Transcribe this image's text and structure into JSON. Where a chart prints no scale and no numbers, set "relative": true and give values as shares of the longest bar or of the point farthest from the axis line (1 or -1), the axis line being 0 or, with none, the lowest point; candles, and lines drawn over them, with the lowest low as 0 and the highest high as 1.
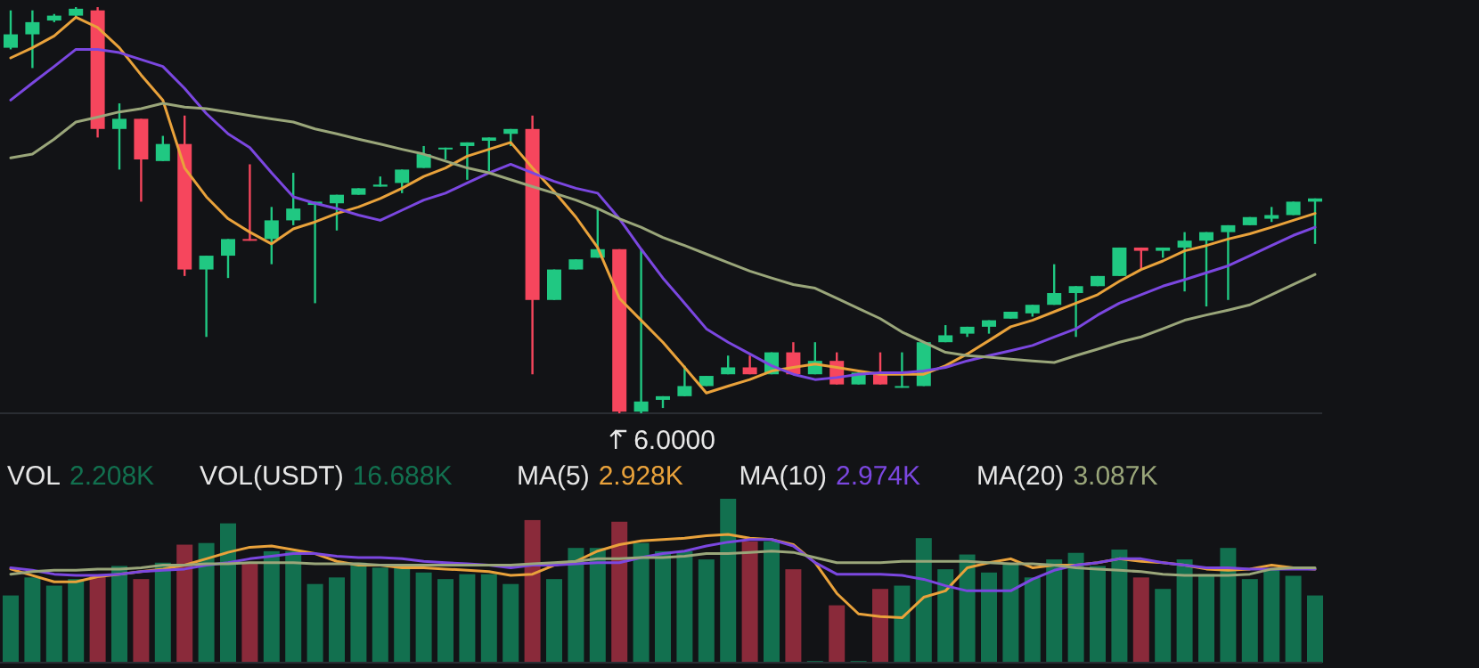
{
  "chart_data": [
    {
      "type": "candlestick",
      "relative": true,
      "categories": [
        null,
        null,
        null,
        null,
        null,
        null,
        null,
        null,
        null,
        null,
        null,
        null,
        null,
        null,
        null,
        null,
        null,
        null,
        null,
        null,
        null,
        null,
        null,
        null,
        null,
        null,
        null,
        null,
        null,
        null,
        null,
        null,
        null,
        null,
        null,
        null,
        null,
        null,
        null,
        null,
        null,
        null,
        null,
        null,
        null,
        null,
        null,
        null,
        null,
        null,
        null,
        null,
        null,
        null,
        null,
        null,
        null,
        null,
        null,
        null,
        null
      ],
      "ohlc": [
        [
          0.9,
          0.992,
          0.896,
          0.933
        ],
        [
          0.933,
          0.992,
          0.85,
          0.963
        ],
        [
          0.967,
          0.983,
          0.963,
          0.979
        ],
        [
          0.979,
          1,
          0.975,
          0.996
        ],
        [
          0.992,
          1,
          0.679,
          0.7
        ],
        [
          0.7,
          0.763,
          0.6,
          0.725
        ],
        [
          0.725,
          0.725,
          0.521,
          0.625
        ],
        [
          0.621,
          0.683,
          0.621,
          0.663
        ],
        [
          0.663,
          0.733,
          0.338,
          0.354
        ],
        [
          0.354,
          0.388,
          0.188,
          0.388
        ],
        [
          0.388,
          0.429,
          0.333,
          0.429
        ],
        [
          0.429,
          0.613,
          0.425,
          0.425
        ],
        [
          0.429,
          0.508,
          0.367,
          0.475
        ],
        [
          0.475,
          0.592,
          0.463,
          0.504
        ],
        [
          0.513,
          0.521,
          0.271,
          0.521
        ],
        [
          0.517,
          0.538,
          0.45,
          0.538
        ],
        [
          0.538,
          0.554,
          0.538,
          0.554
        ],
        [
          0.558,
          0.583,
          0.558,
          0.563
        ],
        [
          0.567,
          0.6,
          0.542,
          0.6
        ],
        [
          0.604,
          0.658,
          0.604,
          0.638
        ],
        [
          0.65,
          0.654,
          0.625,
          0.654
        ],
        [
          0.658,
          0.667,
          0.575,
          0.667
        ],
        [
          0.671,
          0.679,
          0.596,
          0.679
        ],
        [
          0.688,
          0.7,
          0.658,
          0.7
        ],
        [
          0.7,
          0.733,
          0.096,
          0.279
        ],
        [
          0.279,
          0.354,
          0.279,
          0.354
        ],
        [
          0.354,
          0.379,
          0.354,
          0.379
        ],
        [
          0.383,
          0.504,
          0.383,
          0.404
        ],
        [
          0.404,
          0.404,
          0,
          0.004
        ],
        [
          0.004,
          0.404,
          0,
          0.029
        ],
        [
          0.033,
          0.042,
          0.013,
          0.042
        ],
        [
          0.042,
          0.117,
          0.042,
          0.067
        ],
        [
          0.067,
          0.092,
          0.067,
          0.092
        ],
        [
          0.096,
          0.142,
          0.096,
          0.113
        ],
        [
          0.113,
          0.142,
          0.096,
          0.096
        ],
        [
          0.096,
          0.15,
          0.096,
          0.15
        ],
        [
          0.15,
          0.175,
          0.096,
          0.096
        ],
        [
          0.096,
          0.175,
          0.096,
          0.129
        ],
        [
          0.129,
          0.15,
          0.071,
          0.071
        ],
        [
          0.071,
          0.1,
          0.071,
          0.1
        ],
        [
          0.1,
          0.15,
          0.071,
          0.071
        ],
        [
          0.063,
          0.15,
          0.063,
          0.067
        ],
        [
          0.067,
          0.175,
          0.067,
          0.175
        ],
        [
          0.175,
          0.217,
          0.175,
          0.192
        ],
        [
          0.196,
          0.213,
          0.188,
          0.213
        ],
        [
          0.213,
          0.229,
          0.196,
          0.229
        ],
        [
          0.233,
          0.25,
          0.233,
          0.25
        ],
        [
          0.246,
          0.267,
          0.238,
          0.267
        ],
        [
          0.267,
          0.367,
          0.267,
          0.296
        ],
        [
          0.296,
          0.313,
          0.188,
          0.313
        ],
        [
          0.313,
          0.338,
          0.313,
          0.338
        ],
        [
          0.338,
          0.408,
          0.338,
          0.408
        ],
        [
          0.408,
          0.408,
          0.354,
          0.4
        ],
        [
          0.4,
          0.408,
          0.383,
          0.408
        ],
        [
          0.408,
          0.446,
          0.3,
          0.425
        ],
        [
          0.425,
          0.446,
          0.263,
          0.446
        ],
        [
          0.446,
          0.463,
          0.279,
          0.463
        ],
        [
          0.463,
          0.483,
          0.463,
          0.483
        ],
        [
          0.479,
          0.508,
          0.471,
          0.488
        ],
        [
          0.488,
          0.521,
          0.488,
          0.521
        ],
        [
          0.521,
          0.529,
          0.417,
          0.529
        ]
      ],
      "colors": [
        "#20c882",
        "#20c882",
        "#20c882",
        "#20c882",
        "#f6465d",
        "#20c882",
        "#f6465d",
        "#20c882",
        "#f6465d",
        "#20c882",
        "#20c882",
        "#f6465d",
        "#20c882",
        "#20c882",
        "#20c882",
        "#20c882",
        "#20c882",
        "#20c882",
        "#20c882",
        "#20c882",
        "#20c882",
        "#20c882",
        "#20c882",
        "#20c882",
        "#f6465d",
        "#20c882",
        "#20c882",
        "#20c882",
        "#f6465d",
        "#20c882",
        "#20c882",
        "#20c882",
        "#20c882",
        "#20c882",
        "#f6465d",
        "#20c882",
        "#f6465d",
        "#20c882",
        "#f6465d",
        "#20c882",
        "#f6465d",
        "#20c882",
        "#20c882",
        "#20c882",
        "#20c882",
        "#20c882",
        "#20c882",
        "#20c882",
        "#20c882",
        "#20c882",
        "#20c882",
        "#20c882",
        "#f6465d",
        "#20c882",
        "#20c882",
        "#20c882",
        "#20c882",
        "#20c882",
        "#20c882",
        "#20c882",
        "#20c882"
      ],
      "series": [
        {
          "type": "line",
          "color": "#e9a23b",
          "values": [
            0.875,
            0.9,
            0.929,
            0.975,
            0.95,
            0.9,
            0.833,
            0.771,
            0.604,
            0.533,
            0.479,
            0.446,
            0.417,
            0.454,
            0.471,
            0.492,
            0.508,
            0.529,
            0.554,
            0.583,
            0.604,
            0.633,
            0.65,
            0.667,
            0.604,
            0.546,
            0.483,
            0.408,
            0.283,
            0.229,
            0.175,
            0.113,
            0.05,
            0.067,
            0.083,
            0.104,
            0.113,
            0.121,
            0.113,
            0.104,
            0.096,
            0.096,
            0.096,
            0.117,
            0.146,
            0.179,
            0.213,
            0.229,
            0.25,
            0.271,
            0.292,
            0.325,
            0.354,
            0.375,
            0.4,
            0.413,
            0.429,
            0.442,
            0.458,
            0.475,
            0.492
          ]
        },
        {
          "type": "line",
          "color": "#7b47e0",
          "values": [
            0.771,
            0.813,
            0.854,
            0.896,
            0.896,
            0.888,
            0.871,
            0.854,
            0.8,
            0.738,
            0.688,
            0.654,
            0.592,
            0.533,
            0.517,
            0.504,
            0.488,
            0.475,
            0.5,
            0.525,
            0.542,
            0.567,
            0.592,
            0.613,
            0.592,
            0.571,
            0.554,
            0.542,
            0.479,
            0.404,
            0.333,
            0.271,
            0.208,
            0.175,
            0.146,
            0.117,
            0.096,
            0.083,
            0.088,
            0.096,
            0.1,
            0.1,
            0.104,
            0.113,
            0.129,
            0.142,
            0.154,
            0.167,
            0.188,
            0.208,
            0.242,
            0.271,
            0.292,
            0.313,
            0.329,
            0.346,
            0.363,
            0.388,
            0.413,
            0.438,
            0.458
          ]
        },
        {
          "type": "line",
          "color": "#9aa67a",
          "values": [
            0.629,
            0.638,
            0.675,
            0.717,
            0.729,
            0.742,
            0.75,
            0.763,
            0.754,
            0.75,
            0.742,
            0.733,
            0.725,
            0.717,
            0.7,
            0.688,
            0.675,
            0.663,
            0.65,
            0.638,
            0.621,
            0.604,
            0.592,
            0.575,
            0.558,
            0.542,
            0.525,
            0.504,
            0.479,
            0.458,
            0.433,
            0.413,
            0.392,
            0.371,
            0.35,
            0.333,
            0.317,
            0.308,
            0.283,
            0.258,
            0.233,
            0.2,
            0.175,
            0.15,
            0.142,
            0.138,
            0.133,
            0.129,
            0.125,
            0.142,
            0.158,
            0.175,
            0.188,
            0.208,
            0.229,
            0.242,
            0.254,
            0.267,
            0.292,
            0.317,
            0.342
          ]
        }
      ],
      "annotations": [
        "6.0000"
      ]
    },
    {
      "type": "bar",
      "relative": true,
      "categories": [
        null,
        null,
        null,
        null,
        null,
        null,
        null,
        null,
        null,
        null,
        null,
        null,
        null,
        null,
        null,
        null,
        null,
        null,
        null,
        null,
        null,
        null,
        null,
        null,
        null,
        null,
        null,
        null,
        null,
        null,
        null,
        null,
        null,
        null,
        null,
        null,
        null,
        null,
        null,
        null,
        null,
        null,
        null,
        null,
        null,
        null,
        null,
        null,
        null,
        null,
        null,
        null,
        null,
        null,
        null,
        null,
        null,
        null,
        null,
        null,
        null
      ],
      "colors": [
        "#12704f",
        "#12704f",
        "#12704f",
        "#12704f",
        "#8a2a3a",
        "#12704f",
        "#8a2a3a",
        "#12704f",
        "#8a2a3a",
        "#12704f",
        "#12704f",
        "#8a2a3a",
        "#12704f",
        "#12704f",
        "#12704f",
        "#12704f",
        "#12704f",
        "#12704f",
        "#12704f",
        "#12704f",
        "#12704f",
        "#12704f",
        "#12704f",
        "#12704f",
        "#8a2a3a",
        "#12704f",
        "#12704f",
        "#12704f",
        "#8a2a3a",
        "#12704f",
        "#12704f",
        "#12704f",
        "#12704f",
        "#12704f",
        "#8a2a3a",
        "#12704f",
        "#8a2a3a",
        "#12704f",
        "#8a2a3a",
        "#12704f",
        "#8a2a3a",
        "#12704f",
        "#12704f",
        "#12704f",
        "#12704f",
        "#12704f",
        "#12704f",
        "#12704f",
        "#12704f",
        "#12704f",
        "#12704f",
        "#12704f",
        "#8a2a3a",
        "#12704f",
        "#12704f",
        "#12704f",
        "#12704f",
        "#12704f",
        "#12704f",
        "#12704f",
        "#12704f"
      ],
      "values": [
        0.41,
        0.52,
        0.47,
        0.51,
        0.53,
        0.59,
        0.51,
        0.61,
        0.72,
        0.73,
        0.85,
        0.61,
        0.68,
        0.68,
        0.48,
        0.52,
        0.61,
        0.58,
        0.58,
        0.55,
        0.51,
        0.54,
        0.54,
        0.48,
        0.87,
        0.51,
        0.7,
        0.7,
        0.86,
        0.73,
        0.68,
        0.68,
        0.63,
        1,
        0.74,
        0.74,
        0.57,
        0.01,
        0.35,
        0.01,
        0.45,
        0.47,
        0.76,
        0.57,
        0.66,
        0.55,
        0.6,
        0.52,
        0.63,
        0.67,
        0.59,
        0.69,
        0.52,
        0.45,
        0.63,
        0.54,
        0.7,
        0.51,
        0.57,
        0.53,
        0.41
      ],
      "annotations": [
        "VOL 2.208K",
        "VOL(USDT) 16.688K"
      ]
    },
    {
      "type": "line",
      "relative": true,
      "categories": [
        null,
        null,
        null,
        null,
        null,
        null,
        null,
        null,
        null,
        null,
        null,
        null,
        null,
        null,
        null,
        null,
        null,
        null,
        null,
        null,
        null,
        null,
        null,
        null,
        null,
        null,
        null,
        null,
        null,
        null,
        null,
        null,
        null,
        null,
        null,
        null,
        null,
        null,
        null,
        null,
        null,
        null,
        null,
        null,
        null,
        null,
        null,
        null,
        null,
        null,
        null,
        null,
        null,
        null,
        null,
        null,
        null,
        null,
        null,
        null,
        null
      ],
      "series": [
        {
          "color": "#e9a23b",
          "values": [
            0.73,
            0.68,
            0.63,
            0.63,
            0.67,
            0.69,
            0.71,
            0.73,
            0.76,
            0.81,
            0.86,
            0.9,
            0.91,
            0.88,
            0.85,
            0.79,
            0.76,
            0.76,
            0.74,
            0.74,
            0.73,
            0.72,
            0.71,
            0.68,
            0.69,
            0.76,
            0.79,
            0.87,
            0.92,
            0.95,
            0.96,
            0.97,
            0.99,
            1,
            0.97,
            0.96,
            0.92,
            0.78,
            0.54,
            0.38,
            0.36,
            0.35,
            0.51,
            0.56,
            0.74,
            0.78,
            0.81,
            0.74,
            0.76,
            0.76,
            0.78,
            0.81,
            0.79,
            0.78,
            0.76,
            0.73,
            0.72,
            0.73,
            0.76,
            0.74,
            0.73
          ]
        },
        {
          "color": "#7b47e0",
          "values": [
            0.74,
            0.72,
            0.69,
            0.68,
            0.68,
            0.69,
            0.71,
            0.72,
            0.73,
            0.76,
            0.78,
            0.81,
            0.83,
            0.85,
            0.85,
            0.83,
            0.82,
            0.82,
            0.81,
            0.79,
            0.78,
            0.77,
            0.76,
            0.74,
            0.76,
            0.76,
            0.77,
            0.78,
            0.78,
            0.82,
            0.85,
            0.87,
            0.91,
            0.94,
            0.96,
            0.96,
            0.91,
            0.78,
            0.69,
            0.69,
            0.69,
            0.68,
            0.65,
            0.6,
            0.56,
            0.56,
            0.56,
            0.65,
            0.72,
            0.76,
            0.78,
            0.81,
            0.81,
            0.78,
            0.76,
            0.74,
            0.74,
            0.73,
            0.73,
            0.73,
            0.73
          ]
        },
        {
          "color": "#9aa67a",
          "values": [
            0.69,
            0.71,
            0.72,
            0.72,
            0.73,
            0.73,
            0.74,
            0.76,
            0.76,
            0.77,
            0.77,
            0.78,
            0.78,
            0.78,
            0.77,
            0.77,
            0.77,
            0.76,
            0.76,
            0.76,
            0.76,
            0.76,
            0.76,
            0.76,
            0.77,
            0.78,
            0.79,
            0.81,
            0.81,
            0.82,
            0.82,
            0.83,
            0.85,
            0.85,
            0.86,
            0.87,
            0.86,
            0.82,
            0.78,
            0.78,
            0.78,
            0.79,
            0.79,
            0.79,
            0.79,
            0.78,
            0.77,
            0.77,
            0.76,
            0.74,
            0.73,
            0.72,
            0.71,
            0.69,
            0.68,
            0.68,
            0.68,
            0.69,
            0.73,
            0.74,
            0.74
          ]
        }
      ],
      "annotations": [
        "MA(5) 2.928K",
        "MA(10) 2.974K",
        "MA(20) 3.087K"
      ]
    }
  ]
}
